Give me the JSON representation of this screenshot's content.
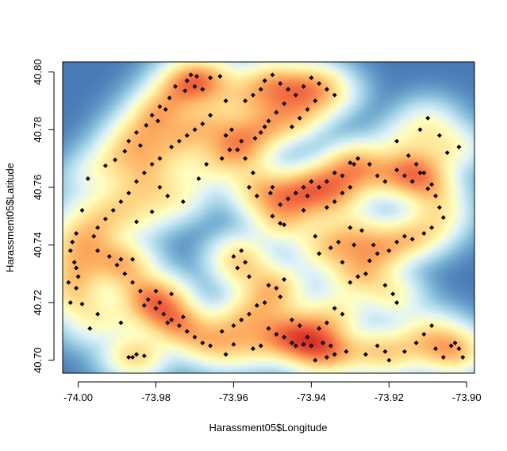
{
  "chart_data": {
    "type": "heatmap",
    "title": "",
    "xlabel": "Harassment05$Longitude",
    "ylabel": "Harassment05$Latitude",
    "xlim": [
      -74.004,
      -73.898
    ],
    "ylim": [
      40.6955,
      40.8035
    ],
    "x_ticks": [
      -74.0,
      -73.98,
      -73.96,
      -73.94,
      -73.92,
      -73.9
    ],
    "x_tick_labels": [
      "-74.00",
      "-73.98",
      "-73.96",
      "-73.94",
      "-73.92",
      "-73.90"
    ],
    "y_ticks": [
      40.7,
      40.72,
      40.74,
      40.76,
      40.78,
      40.8
    ],
    "y_tick_labels": [
      "40.70",
      "40.72",
      "40.74",
      "40.76",
      "40.78",
      "40.80"
    ],
    "colormap": [
      "#313695",
      "#4575b4",
      "#74add1",
      "#abd9e9",
      "#e0f3f8",
      "#ffffbf",
      "#fee090",
      "#fdae61",
      "#f46d43",
      "#d73027"
    ],
    "points": [
      [
        -73.971,
        40.799
      ],
      [
        -73.9695,
        40.7985
      ],
      [
        -73.966,
        40.798
      ],
      [
        -73.9635,
        40.7985
      ],
      [
        -73.972,
        40.797
      ],
      [
        -73.975,
        40.795
      ],
      [
        -73.97,
        40.795
      ],
      [
        -73.968,
        40.794
      ],
      [
        -73.9725,
        40.7935
      ],
      [
        -73.9765,
        40.791
      ],
      [
        -73.979,
        40.788
      ],
      [
        -73.9775,
        40.787
      ],
      [
        -73.9795,
        40.783
      ],
      [
        -73.981,
        40.785
      ],
      [
        -73.9825,
        40.7815
      ],
      [
        -73.985,
        40.779
      ],
      [
        -73.984,
        40.7745
      ],
      [
        -73.987,
        40.776
      ],
      [
        -73.988,
        40.7725
      ],
      [
        -73.9905,
        40.7695
      ],
      [
        -73.993,
        40.7675
      ],
      [
        -73.9975,
        40.763
      ],
      [
        -73.979,
        40.76
      ],
      [
        -73.977,
        40.757
      ],
      [
        -73.973,
        40.755
      ],
      [
        -73.969,
        40.763
      ],
      [
        -73.981,
        40.7515
      ],
      [
        -73.985,
        40.748
      ],
      [
        -73.999,
        40.752
      ],
      [
        -74.0005,
        40.744
      ],
      [
        -74.0015,
        40.741
      ],
      [
        -74.002,
        40.738
      ],
      [
        -74.001,
        40.734
      ],
      [
        -74.0005,
        40.732
      ],
      [
        -74.0,
        40.729
      ],
      [
        -74.0025,
        40.727
      ],
      [
        -74.0005,
        40.725
      ],
      [
        -74.002,
        40.72
      ],
      [
        -73.999,
        40.7195
      ],
      [
        -73.995,
        40.716
      ],
      [
        -73.997,
        40.711
      ],
      [
        -73.989,
        40.713
      ],
      [
        -73.986,
        40.735
      ],
      [
        -73.989,
        40.735
      ],
      [
        -73.983,
        40.719
      ],
      [
        -73.98,
        40.724
      ],
      [
        -73.976,
        40.723
      ],
      [
        -73.979,
        40.72
      ],
      [
        -73.973,
        40.715
      ],
      [
        -73.977,
        40.713
      ],
      [
        -73.985,
        40.702
      ],
      [
        -73.983,
        40.7015
      ],
      [
        -73.987,
        40.701
      ],
      [
        -73.986,
        40.701
      ],
      [
        -73.967,
        40.768
      ],
      [
        -73.963,
        40.77
      ],
      [
        -73.961,
        40.773
      ],
      [
        -73.958,
        40.776
      ],
      [
        -73.9545,
        40.777
      ],
      [
        -73.952,
        40.781
      ],
      [
        -73.9605,
        40.78
      ],
      [
        -73.962,
        40.778
      ],
      [
        -73.959,
        40.773
      ],
      [
        -73.957,
        40.77
      ],
      [
        -73.955,
        40.765
      ],
      [
        -73.954,
        40.757
      ],
      [
        -73.956,
        40.76
      ],
      [
        -73.9505,
        40.758
      ],
      [
        -73.95,
        40.75
      ],
      [
        -73.948,
        40.7475
      ],
      [
        -73.947,
        40.747
      ],
      [
        -73.942,
        40.752
      ],
      [
        -73.941,
        40.757
      ],
      [
        -73.938,
        40.76
      ],
      [
        -73.936,
        40.762
      ],
      [
        -73.934,
        40.765
      ],
      [
        -73.93,
        40.7685
      ],
      [
        -73.928,
        40.77
      ],
      [
        -73.925,
        40.768
      ],
      [
        -73.923,
        40.764
      ],
      [
        -73.921,
        40.762
      ],
      [
        -73.918,
        40.766
      ],
      [
        -73.916,
        40.764
      ],
      [
        -73.914,
        40.762
      ],
      [
        -73.911,
        40.765
      ],
      [
        -73.91,
        40.7595
      ],
      [
        -73.908,
        40.757
      ],
      [
        -73.907,
        40.753
      ],
      [
        -73.906,
        40.7495
      ],
      [
        -73.909,
        40.746
      ],
      [
        -73.911,
        40.744
      ],
      [
        -73.914,
        40.742
      ],
      [
        -73.916,
        40.743
      ],
      [
        -73.918,
        40.741
      ],
      [
        -73.92,
        40.738
      ],
      [
        -73.923,
        40.737
      ],
      [
        -73.924,
        40.74
      ],
      [
        -73.925,
        40.7345
      ],
      [
        -73.926,
        40.73
      ],
      [
        -73.928,
        40.729
      ],
      [
        -73.93,
        40.727
      ],
      [
        -73.932,
        40.734
      ],
      [
        -73.939,
        40.743
      ],
      [
        -73.921,
        40.726
      ],
      [
        -73.919,
        40.723
      ],
      [
        -73.918,
        40.72
      ],
      [
        -73.92,
        40.7
      ],
      [
        -73.916,
        40.703
      ],
      [
        -73.913,
        40.706
      ],
      [
        -73.911,
        40.709
      ],
      [
        -73.908,
        40.704
      ],
      [
        -73.906,
        40.701
      ],
      [
        -73.903,
        40.706
      ],
      [
        -73.902,
        40.704
      ],
      [
        -73.901,
        40.701
      ],
      [
        -73.904,
        40.705
      ],
      [
        -73.909,
        40.712
      ],
      [
        -73.921,
        40.703
      ],
      [
        -73.923,
        40.705
      ],
      [
        -73.926,
        40.702
      ],
      [
        -73.931,
        40.703
      ],
      [
        -73.934,
        40.702
      ],
      [
        -73.936,
        40.701
      ],
      [
        -73.939,
        40.7
      ],
      [
        -73.942,
        40.7055
      ],
      [
        -73.945,
        40.706
      ],
      [
        -73.944,
        40.705
      ],
      [
        -73.947,
        40.708
      ],
      [
        -73.949,
        40.709
      ],
      [
        -73.951,
        40.711
      ],
      [
        -73.953,
        40.705
      ],
      [
        -73.955,
        40.704
      ],
      [
        -73.96,
        40.7055
      ],
      [
        -73.962,
        40.702
      ],
      [
        -73.966,
        40.705
      ],
      [
        -73.963,
        40.71
      ],
      [
        -73.96,
        40.712
      ],
      [
        -73.958,
        40.714
      ],
      [
        -73.956,
        40.716
      ],
      [
        -73.954,
        40.719
      ],
      [
        -73.952,
        40.72
      ],
      [
        -73.949,
        40.725
      ],
      [
        -73.951,
        40.726
      ],
      [
        -73.948,
        40.722
      ],
      [
        -73.947,
        40.728
      ],
      [
        -73.956,
        40.729
      ],
      [
        -73.959,
        40.732
      ],
      [
        -73.957,
        40.734
      ],
      [
        -73.96,
        40.736
      ],
      [
        -73.958,
        40.738
      ],
      [
        -73.945,
        40.714
      ],
      [
        -73.943,
        40.712
      ],
      [
        -73.941,
        40.708
      ],
      [
        -73.94,
        40.705
      ],
      [
        -73.938,
        40.711
      ],
      [
        -73.936,
        40.713
      ],
      [
        -73.934,
        40.718
      ],
      [
        -73.932,
        40.716
      ],
      [
        -73.937,
        40.706
      ],
      [
        -73.935,
        40.705
      ],
      [
        -73.929,
        40.768
      ],
      [
        -73.932,
        40.764
      ],
      [
        -73.915,
        40.771
      ],
      [
        -73.913,
        40.768
      ],
      [
        -73.912,
        40.765
      ],
      [
        -73.909,
        40.761
      ],
      [
        -73.905,
        40.772
      ],
      [
        -73.907,
        40.778
      ],
      [
        -73.918,
        40.776
      ],
      [
        -73.912,
        40.78
      ],
      [
        -73.91,
        40.784
      ],
      [
        -73.902,
        40.774
      ],
      [
        -73.93,
        40.746
      ],
      [
        -73.927,
        40.745
      ],
      [
        -73.935,
        40.739
      ],
      [
        -73.929,
        40.74
      ],
      [
        -73.938,
        40.737
      ],
      [
        -73.933,
        40.741
      ],
      [
        -73.936,
        40.753
      ],
      [
        -73.934,
        40.755
      ],
      [
        -73.932,
        40.758
      ],
      [
        -73.93,
        40.76
      ],
      [
        -73.94,
        40.762
      ],
      [
        -73.942,
        40.76
      ],
      [
        -73.944,
        40.758
      ],
      [
        -73.946,
        40.756
      ],
      [
        -73.948,
        40.754
      ],
      [
        -73.95,
        40.76
      ],
      [
        -73.953,
        40.779
      ],
      [
        -73.951,
        40.783
      ],
      [
        -73.949,
        40.786
      ],
      [
        -73.947,
        40.789
      ],
      [
        -73.944,
        40.792
      ],
      [
        -73.942,
        40.795
      ],
      [
        -73.94,
        40.798
      ],
      [
        -73.938,
        40.796
      ],
      [
        -73.936,
        40.794
      ],
      [
        -73.934,
        40.792
      ],
      [
        -73.939,
        40.79
      ],
      [
        -73.941,
        40.787
      ],
      [
        -73.943,
        40.784
      ],
      [
        -73.945,
        40.781
      ],
      [
        -73.95,
        40.799
      ],
      [
        -73.952,
        40.797
      ],
      [
        -73.948,
        40.796
      ],
      [
        -73.946,
        40.794
      ],
      [
        -73.953,
        40.794
      ],
      [
        -73.955,
        40.792
      ],
      [
        -73.957,
        40.79
      ],
      [
        -73.962,
        40.79
      ],
      [
        -73.966,
        40.785
      ],
      [
        -73.968,
        40.782
      ],
      [
        -73.97,
        40.78
      ],
      [
        -73.972,
        40.778
      ],
      [
        -73.974,
        40.776
      ],
      [
        -73.976,
        40.774
      ],
      [
        -73.979,
        40.77
      ],
      [
        -73.981,
        40.768
      ],
      [
        -73.983,
        40.765
      ],
      [
        -73.985,
        40.762
      ],
      [
        -73.987,
        40.758
      ],
      [
        -73.989,
        40.755
      ],
      [
        -73.991,
        40.752
      ],
      [
        -73.993,
        40.749
      ],
      [
        -73.995,
        40.746
      ],
      [
        -73.996,
        40.743
      ],
      [
        -73.995,
        40.738
      ],
      [
        -73.992,
        40.736
      ],
      [
        -73.99,
        40.733
      ],
      [
        -73.988,
        40.73
      ],
      [
        -73.986,
        40.727
      ],
      [
        -73.984,
        40.724
      ],
      [
        -73.982,
        40.721
      ],
      [
        -73.98,
        40.718
      ],
      [
        -73.978,
        40.716
      ],
      [
        -73.976,
        40.714
      ],
      [
        -73.974,
        40.712
      ],
      [
        -73.972,
        40.71
      ],
      [
        -73.97,
        40.708
      ],
      [
        -73.968,
        40.706
      ]
    ]
  }
}
